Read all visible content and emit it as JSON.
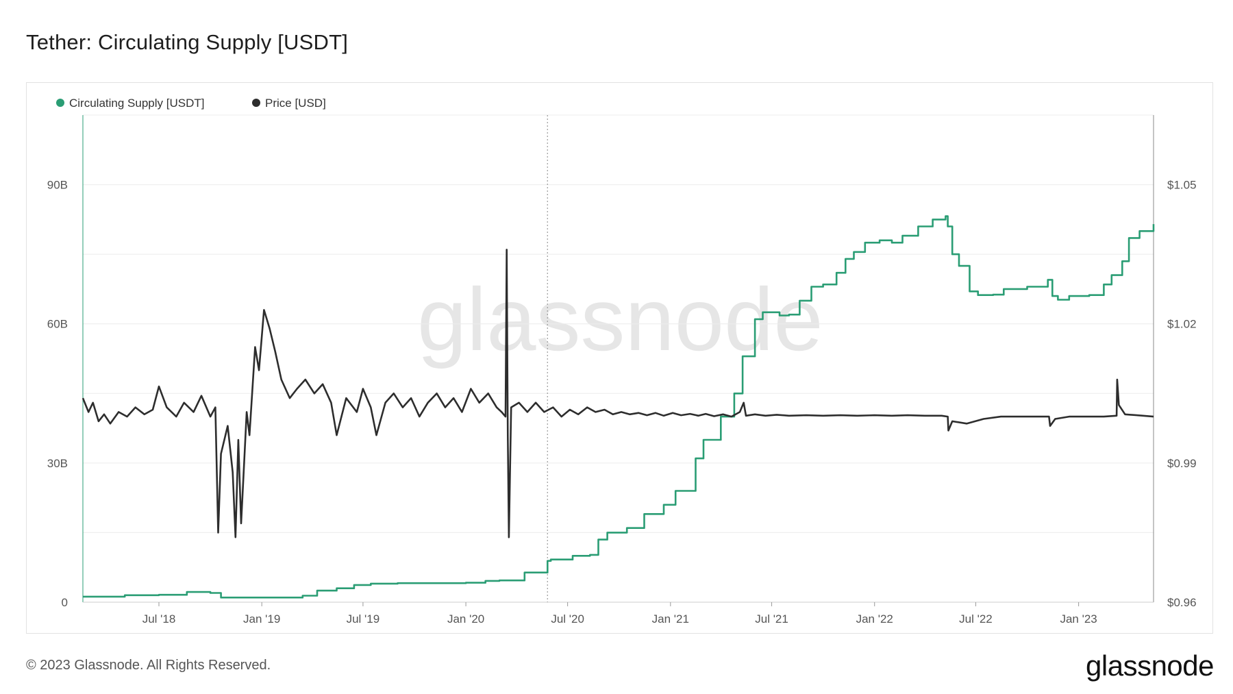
{
  "title": "Tether: Circulating Supply [USDT]",
  "footer": "© 2023 Glassnode. All Rights Reserved.",
  "logo": "glassnode",
  "watermark": "glassnode",
  "colors": {
    "supply": "#2a9d74",
    "price": "#2d2d2d",
    "grid": "#ececec",
    "marker": "#999999"
  },
  "chart_data": {
    "type": "line",
    "legend": [
      "Circulating Supply [USDT]",
      "Price [USD]"
    ],
    "legend_placement": "top-left",
    "grid": true,
    "x_ticks": [
      "Jul '18",
      "Jan '19",
      "Jul '19",
      "Jan '20",
      "Jul '20",
      "Jan '21",
      "Jul '21",
      "Jan '22",
      "Jul '22",
      "Jan '23"
    ],
    "x_tick_dates": [
      "2018-07-01",
      "2019-01-01",
      "2019-07-01",
      "2020-01-01",
      "2020-07-01",
      "2021-01-01",
      "2021-07-01",
      "2022-01-01",
      "2022-07-01",
      "2023-01-01"
    ],
    "xlim": [
      "2018-02-15",
      "2023-05-15"
    ],
    "y_left": {
      "label": "",
      "ticks": [
        "0",
        "30B",
        "60B",
        "90B"
      ],
      "tick_values": [
        0,
        30,
        60,
        90
      ],
      "lim": [
        0,
        105
      ]
    },
    "y_right": {
      "label": "",
      "ticks": [
        "$0.96",
        "$0.99",
        "$1.02",
        "$1.05"
      ],
      "tick_values": [
        0.96,
        0.99,
        1.02,
        1.05
      ],
      "lim": [
        0.96,
        1.065
      ]
    },
    "marker_date": "2020-05-26",
    "series": [
      {
        "name": "Circulating Supply [USDT]",
        "axis": "left",
        "step": true,
        "points": [
          [
            "2018-02-15",
            1.2
          ],
          [
            "2018-05-01",
            1.5
          ],
          [
            "2018-07-01",
            1.6
          ],
          [
            "2018-08-20",
            2.2
          ],
          [
            "2018-10-01",
            2.0
          ],
          [
            "2018-10-20",
            1.0
          ],
          [
            "2018-12-01",
            1.0
          ],
          [
            "2019-02-15",
            1.0
          ],
          [
            "2019-03-15",
            1.4
          ],
          [
            "2019-04-10",
            2.5
          ],
          [
            "2019-05-15",
            3.0
          ],
          [
            "2019-06-15",
            3.7
          ],
          [
            "2019-07-15",
            4.0
          ],
          [
            "2019-09-01",
            4.1
          ],
          [
            "2019-11-01",
            4.1
          ],
          [
            "2020-01-01",
            4.2
          ],
          [
            "2020-02-05",
            4.6
          ],
          [
            "2020-03-01",
            4.7
          ],
          [
            "2020-04-15",
            6.4
          ],
          [
            "2020-05-26",
            8.9
          ],
          [
            "2020-06-01",
            9.2
          ],
          [
            "2020-07-10",
            10.0
          ],
          [
            "2020-08-10",
            10.2
          ],
          [
            "2020-08-25",
            13.5
          ],
          [
            "2020-09-10",
            15.0
          ],
          [
            "2020-10-15",
            16.0
          ],
          [
            "2020-11-15",
            19.0
          ],
          [
            "2020-12-20",
            21.0
          ],
          [
            "2021-01-10",
            24.0
          ],
          [
            "2021-02-15",
            31.0
          ],
          [
            "2021-03-01",
            35.0
          ],
          [
            "2021-04-01",
            40.0
          ],
          [
            "2021-04-25",
            45.0
          ],
          [
            "2021-05-10",
            53.0
          ],
          [
            "2021-06-01",
            61.0
          ],
          [
            "2021-06-15",
            62.5
          ],
          [
            "2021-07-15",
            61.8
          ],
          [
            "2021-08-01",
            62.0
          ],
          [
            "2021-08-20",
            65.0
          ],
          [
            "2021-09-10",
            68.0
          ],
          [
            "2021-10-01",
            68.5
          ],
          [
            "2021-10-25",
            71.0
          ],
          [
            "2021-11-10",
            74.0
          ],
          [
            "2021-11-25",
            75.5
          ],
          [
            "2021-12-15",
            77.5
          ],
          [
            "2022-01-10",
            78.0
          ],
          [
            "2022-02-01",
            77.5
          ],
          [
            "2022-02-20",
            79.0
          ],
          [
            "2022-03-20",
            81.0
          ],
          [
            "2022-04-15",
            82.5
          ],
          [
            "2022-05-08",
            83.2
          ],
          [
            "2022-05-12",
            81.0
          ],
          [
            "2022-05-20",
            75.0
          ],
          [
            "2022-06-01",
            72.5
          ],
          [
            "2022-06-20",
            67.0
          ],
          [
            "2022-07-05",
            66.2
          ],
          [
            "2022-08-01",
            66.3
          ],
          [
            "2022-08-20",
            67.5
          ],
          [
            "2022-09-15",
            67.5
          ],
          [
            "2022-10-01",
            68.0
          ],
          [
            "2022-11-07",
            69.5
          ],
          [
            "2022-11-15",
            66.0
          ],
          [
            "2022-11-25",
            65.2
          ],
          [
            "2022-12-15",
            66.0
          ],
          [
            "2023-01-20",
            66.2
          ],
          [
            "2023-02-15",
            68.5
          ],
          [
            "2023-03-01",
            70.5
          ],
          [
            "2023-03-20",
            73.5
          ],
          [
            "2023-04-01",
            78.5
          ],
          [
            "2023-04-20",
            80.0
          ],
          [
            "2023-05-15",
            81.5
          ]
        ]
      },
      {
        "name": "Price [USD]",
        "axis": "right",
        "step": false,
        "points": [
          [
            "2018-02-15",
            1.004
          ],
          [
            "2018-02-25",
            1.001
          ],
          [
            "2018-03-05",
            1.003
          ],
          [
            "2018-03-15",
            0.999
          ],
          [
            "2018-03-25",
            1.0005
          ],
          [
            "2018-04-05",
            0.9985
          ],
          [
            "2018-04-20",
            1.001
          ],
          [
            "2018-05-05",
            1.0
          ],
          [
            "2018-05-20",
            1.002
          ],
          [
            "2018-06-05",
            1.0005
          ],
          [
            "2018-06-20",
            1.0015
          ],
          [
            "2018-07-01",
            1.0065
          ],
          [
            "2018-07-15",
            1.002
          ],
          [
            "2018-08-01",
            1.0
          ],
          [
            "2018-08-15",
            1.003
          ],
          [
            "2018-09-01",
            1.001
          ],
          [
            "2018-09-15",
            1.0045
          ],
          [
            "2018-10-01",
            1.0
          ],
          [
            "2018-10-10",
            1.002
          ],
          [
            "2018-10-15",
            0.975
          ],
          [
            "2018-10-20",
            0.992
          ],
          [
            "2018-11-01",
            0.998
          ],
          [
            "2018-11-10",
            0.988
          ],
          [
            "2018-11-15",
            0.974
          ],
          [
            "2018-11-20",
            0.995
          ],
          [
            "2018-11-25",
            0.977
          ],
          [
            "2018-12-05",
            1.001
          ],
          [
            "2018-12-10",
            0.996
          ],
          [
            "2018-12-20",
            1.015
          ],
          [
            "2018-12-27",
            1.01
          ],
          [
            "2019-01-05",
            1.023
          ],
          [
            "2019-01-15",
            1.019
          ],
          [
            "2019-01-25",
            1.014
          ],
          [
            "2019-02-05",
            1.008
          ],
          [
            "2019-02-20",
            1.004
          ],
          [
            "2019-03-05",
            1.006
          ],
          [
            "2019-03-20",
            1.008
          ],
          [
            "2019-04-05",
            1.005
          ],
          [
            "2019-04-20",
            1.007
          ],
          [
            "2019-05-05",
            1.003
          ],
          [
            "2019-05-15",
            0.996
          ],
          [
            "2019-06-01",
            1.004
          ],
          [
            "2019-06-20",
            1.001
          ],
          [
            "2019-07-01",
            1.006
          ],
          [
            "2019-07-15",
            1.002
          ],
          [
            "2019-07-25",
            0.996
          ],
          [
            "2019-08-10",
            1.003
          ],
          [
            "2019-08-25",
            1.005
          ],
          [
            "2019-09-10",
            1.002
          ],
          [
            "2019-09-25",
            1.004
          ],
          [
            "2019-10-10",
            1.0
          ],
          [
            "2019-10-25",
            1.003
          ],
          [
            "2019-11-10",
            1.005
          ],
          [
            "2019-11-25",
            1.002
          ],
          [
            "2019-12-10",
            1.004
          ],
          [
            "2019-12-25",
            1.001
          ],
          [
            "2020-01-10",
            1.006
          ],
          [
            "2020-01-25",
            1.003
          ],
          [
            "2020-02-10",
            1.005
          ],
          [
            "2020-02-25",
            1.002
          ],
          [
            "2020-03-05",
            1.001
          ],
          [
            "2020-03-12",
            1.0
          ],
          [
            "2020-03-14",
            1.036
          ],
          [
            "2020-03-16",
            0.996
          ],
          [
            "2020-03-18",
            0.974
          ],
          [
            "2020-03-22",
            1.002
          ],
          [
            "2020-04-05",
            1.003
          ],
          [
            "2020-04-20",
            1.001
          ],
          [
            "2020-05-05",
            1.003
          ],
          [
            "2020-05-20",
            1.001
          ],
          [
            "2020-06-05",
            1.002
          ],
          [
            "2020-06-20",
            1.0
          ],
          [
            "2020-07-05",
            1.0015
          ],
          [
            "2020-07-20",
            1.0005
          ],
          [
            "2020-08-05",
            1.002
          ],
          [
            "2020-08-20",
            1.001
          ],
          [
            "2020-09-05",
            1.0015
          ],
          [
            "2020-09-20",
            1.0005
          ],
          [
            "2020-10-05",
            1.001
          ],
          [
            "2020-10-20",
            1.0005
          ],
          [
            "2020-11-05",
            1.0008
          ],
          [
            "2020-11-20",
            1.0003
          ],
          [
            "2020-12-05",
            1.0008
          ],
          [
            "2020-12-20",
            1.0002
          ],
          [
            "2021-01-05",
            1.0008
          ],
          [
            "2021-01-20",
            1.0003
          ],
          [
            "2021-02-05",
            1.0006
          ],
          [
            "2021-02-20",
            1.0002
          ],
          [
            "2021-03-05",
            1.0006
          ],
          [
            "2021-03-20",
            1.0001
          ],
          [
            "2021-04-05",
            1.0005
          ],
          [
            "2021-04-20",
            1.0
          ],
          [
            "2021-05-05",
            1.001
          ],
          [
            "2021-05-12",
            1.003
          ],
          [
            "2021-05-16",
            1.0002
          ],
          [
            "2021-06-01",
            1.0005
          ],
          [
            "2021-06-20",
            1.0002
          ],
          [
            "2021-07-10",
            1.0004
          ],
          [
            "2021-08-01",
            1.0002
          ],
          [
            "2021-09-01",
            1.0003
          ],
          [
            "2021-10-01",
            1.0002
          ],
          [
            "2021-11-01",
            1.0003
          ],
          [
            "2021-12-01",
            1.0002
          ],
          [
            "2022-01-01",
            1.0003
          ],
          [
            "2022-02-01",
            1.0002
          ],
          [
            "2022-03-01",
            1.0003
          ],
          [
            "2022-04-01",
            1.0002
          ],
          [
            "2022-05-01",
            1.0002
          ],
          [
            "2022-05-12",
            1.0
          ],
          [
            "2022-05-13",
            0.997
          ],
          [
            "2022-05-20",
            0.999
          ],
          [
            "2022-06-15",
            0.9985
          ],
          [
            "2022-07-15",
            0.9995
          ],
          [
            "2022-08-15",
            1.0
          ],
          [
            "2022-09-15",
            1.0
          ],
          [
            "2022-10-15",
            1.0
          ],
          [
            "2022-11-09",
            1.0
          ],
          [
            "2022-11-11",
            0.998
          ],
          [
            "2022-11-20",
            0.9995
          ],
          [
            "2022-12-15",
            1.0
          ],
          [
            "2023-01-15",
            1.0
          ],
          [
            "2023-02-15",
            1.0
          ],
          [
            "2023-03-10",
            1.0002
          ],
          [
            "2023-03-11",
            1.008
          ],
          [
            "2023-03-14",
            1.0025
          ],
          [
            "2023-03-25",
            1.0005
          ],
          [
            "2023-04-15",
            1.0003
          ],
          [
            "2023-05-15",
            1.0
          ]
        ]
      }
    ]
  }
}
